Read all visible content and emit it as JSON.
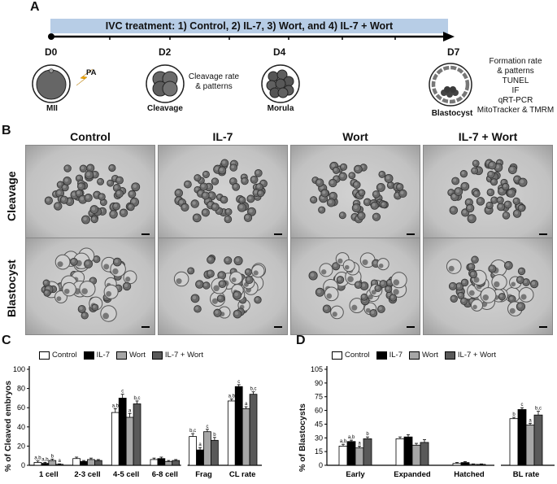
{
  "panels": {
    "a": "A",
    "b": "B",
    "c": "C",
    "d": "D"
  },
  "schematic": {
    "banner": "IVC treatment: 1) Control, 2) IL-7, 3) Wort, and 4) IL-7 + Wort",
    "days": [
      "D0",
      "D2",
      "D4",
      "D7"
    ],
    "stages": [
      "MII",
      "Cleavage",
      "Morula",
      "Blastocyst"
    ],
    "pa_label": "PA",
    "d2_note": [
      "Cleavage rate",
      "& patterns"
    ],
    "d7_note": [
      "Formation rate",
      "& patterns",
      "TUNEL",
      "IF",
      "qRT-PCR",
      "MitoTracker & TMRM"
    ]
  },
  "micrographs": {
    "columns": [
      "Control",
      "IL-7",
      "Wort",
      "IL-7 + Wort"
    ],
    "rows": [
      "Cleavage",
      "Blastocyst"
    ]
  },
  "colors": {
    "control": "#ffffff",
    "il7": "#000000",
    "wort": "#a6a6a6",
    "il7wort": "#595959",
    "banner": "#b7cde6"
  },
  "chart_data": [
    {
      "type": "bar",
      "categories": [
        "1 cell",
        "2-3 cell",
        "4-5 cell",
        "6-8 cell",
        "Frag",
        "CL rate"
      ],
      "series": [
        {
          "name": "Control",
          "values": [
            3,
            7,
            55,
            6,
            30,
            67
          ]
        },
        {
          "name": "IL-7",
          "values": [
            2,
            4,
            70,
            7,
            16,
            82
          ]
        },
        {
          "name": "Wort",
          "values": [
            5,
            6,
            50,
            4,
            35,
            59
          ]
        },
        {
          "name": "IL-7 + Wort",
          "values": [
            1,
            5,
            64,
            5,
            26,
            74
          ]
        }
      ],
      "errors": [
        [
          1.5,
          1.5,
          4,
          1.5,
          3,
          2
        ],
        [
          1,
          1,
          4,
          1.5,
          2.5,
          2
        ],
        [
          1.5,
          1.5,
          4,
          1,
          2.5,
          2
        ],
        [
          0.5,
          1,
          3,
          1,
          3,
          2.5
        ]
      ],
      "sig_labels": [
        [
          "a,b",
          "",
          "a,b",
          "",
          "b,c",
          "a,b"
        ],
        [
          "a,b",
          "",
          "c",
          "",
          "a",
          "c"
        ],
        [
          "b",
          "",
          "a",
          "",
          "c",
          "a"
        ],
        [
          "a",
          "",
          "b,c",
          "",
          "b",
          "b,c"
        ]
      ],
      "ylabel": "% of Cleaved embryos",
      "ylim": [
        0,
        100
      ],
      "yticks": [
        "0",
        "20",
        "40",
        "60",
        "80",
        "100"
      ],
      "legend": "top"
    },
    {
      "type": "bar",
      "categories": [
        "Early",
        "Expanded",
        "Hatched",
        "BL rate"
      ],
      "series": [
        {
          "name": "Control",
          "values": [
            21,
            29,
            2,
            51
          ]
        },
        {
          "name": "IL-7",
          "values": [
            26,
            31,
            3,
            61
          ]
        },
        {
          "name": "Wort",
          "values": [
            19,
            22,
            1,
            44
          ]
        },
        {
          "name": "IL-7 + Wort",
          "values": [
            29,
            25,
            1,
            55
          ]
        }
      ],
      "errors": [
        [
          2,
          2,
          1,
          1.5
        ],
        [
          1.5,
          2.5,
          1,
          2
        ],
        [
          2,
          2,
          0.5,
          2
        ],
        [
          2,
          3,
          0.5,
          4
        ]
      ],
      "sig_labels": [
        [
          "a,b",
          "",
          "",
          "b"
        ],
        [
          "a,b",
          "",
          "",
          "c"
        ],
        [
          "a",
          "",
          "",
          "a"
        ],
        [
          "b",
          "",
          "",
          "b,c"
        ]
      ],
      "ylabel": "% of Blastocysts",
      "ylim": [
        0,
        105
      ],
      "yticks": [
        "0",
        "15",
        "30",
        "45",
        "60",
        "75",
        "90",
        "105"
      ],
      "legend": "top"
    }
  ]
}
